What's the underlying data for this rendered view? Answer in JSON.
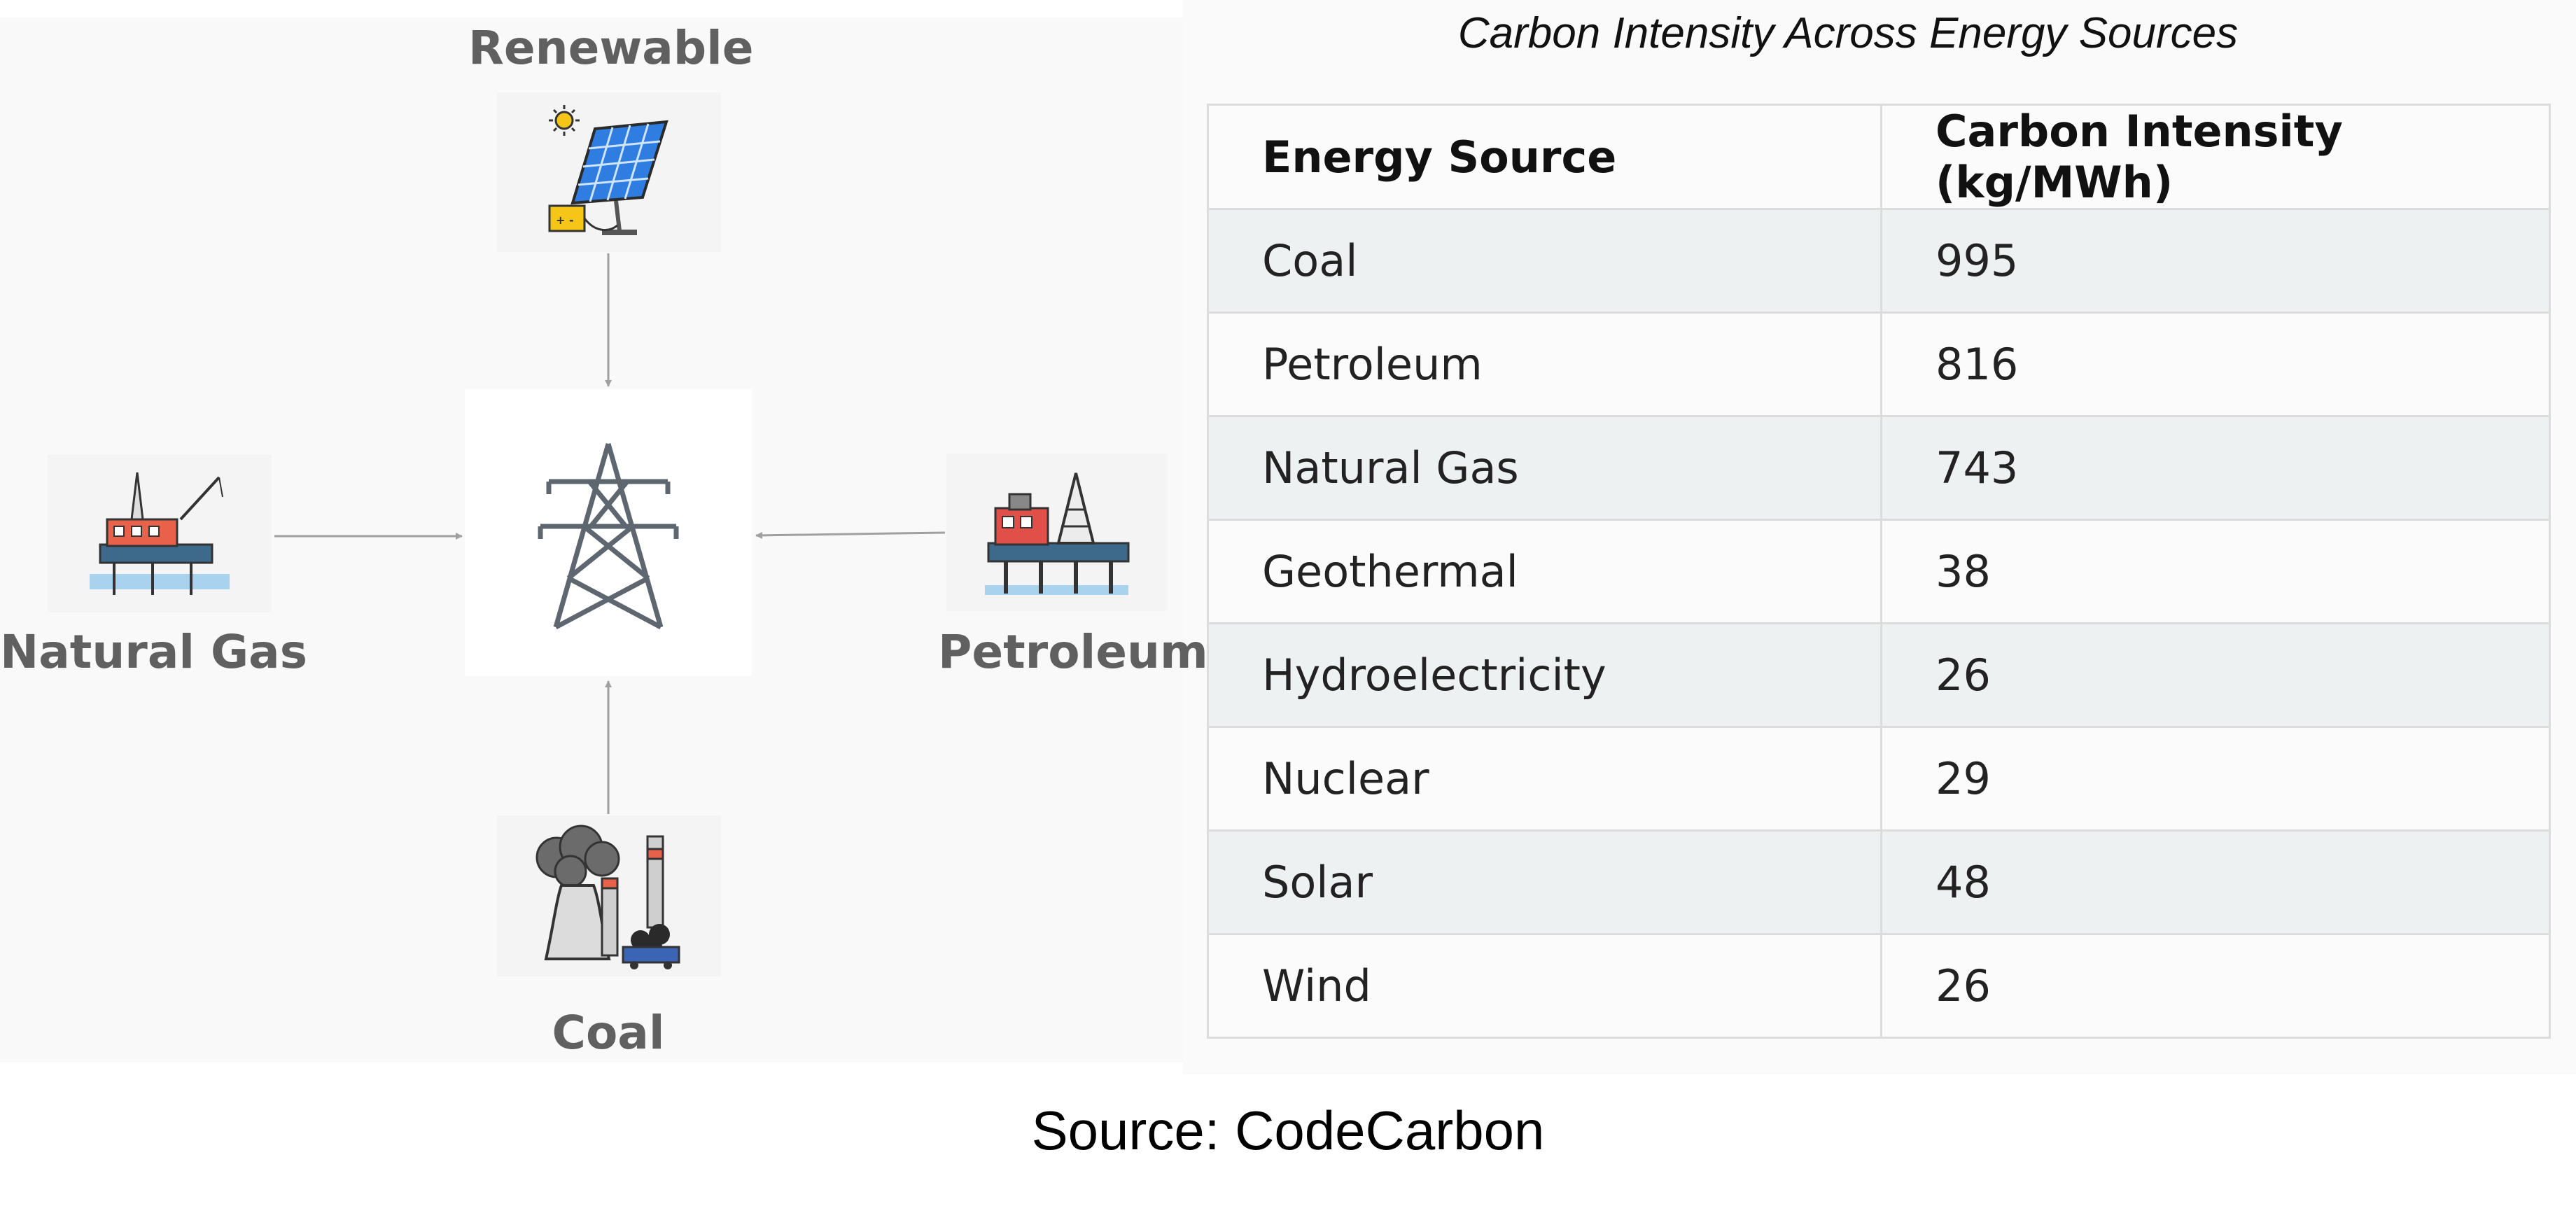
{
  "diagram": {
    "nodes": {
      "renewable": {
        "label": "Renewable",
        "icon": "solar-panel-icon"
      },
      "natural_gas": {
        "label": "Natural Gas",
        "icon": "offshore-gas-rig-icon"
      },
      "petroleum": {
        "label": "Petroleum",
        "icon": "oil-platform-icon"
      },
      "coal": {
        "label": "Coal",
        "icon": "coal-power-plant-icon"
      },
      "hub": {
        "icon": "transmission-tower-icon"
      }
    }
  },
  "table": {
    "title": "Carbon Intensity Across Energy Sources",
    "headers": [
      "Energy Source",
      "Carbon Intensity (kg/MWh)"
    ],
    "rows": [
      [
        "Coal",
        "995"
      ],
      [
        "Petroleum",
        "816"
      ],
      [
        "Natural Gas",
        "743"
      ],
      [
        "Geothermal",
        "38"
      ],
      [
        "Hydroelectricity",
        "26"
      ],
      [
        "Nuclear",
        "29"
      ],
      [
        "Solar",
        "48"
      ],
      [
        "Wind",
        "26"
      ]
    ]
  },
  "caption": "Source: CodeCarbon",
  "colors": {
    "label_gray": "#606060",
    "row_stripe": "#eef1f2",
    "arrow": "#a0a0a0"
  }
}
